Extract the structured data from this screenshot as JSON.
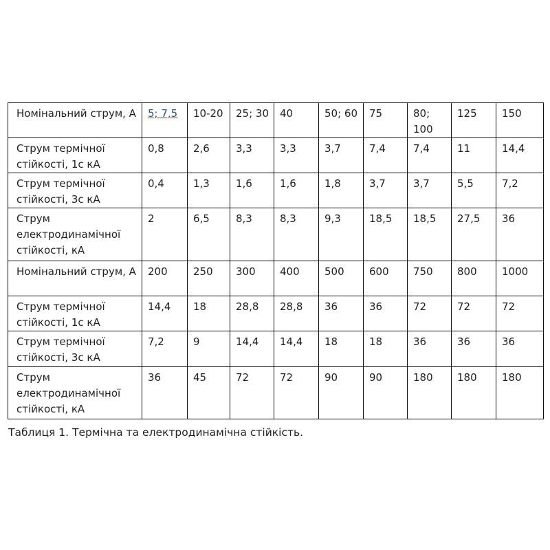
{
  "table": {
    "rows": [
      {
        "label": "Номінальний струм, А",
        "values": [
          "5; 7,5",
          "10-20",
          "25; 30",
          "40",
          "50; 60",
          "75",
          "80; 100",
          "125",
          "150"
        ]
      },
      {
        "label": "Струм термічної стійкості, 1с кА",
        "values": [
          "0,8",
          "2,6",
          "3,3",
          "3,3",
          "3,7",
          "7,4",
          "7,4",
          "11",
          "14,4"
        ]
      },
      {
        "label": "Струм термічної стійкості, 3с кА",
        "values": [
          "0,4",
          "1,3",
          "1,6",
          "1,6",
          "1,8",
          "3,7",
          "3,7",
          "5,5",
          "7,2"
        ]
      },
      {
        "label": "Струм електродинамічної стійкості, кА",
        "values": [
          "2",
          "6,5",
          "8,3",
          "8,3",
          "9,3",
          "18,5",
          "18,5",
          "27,5",
          "36"
        ]
      },
      {
        "label": "Номінальний струм, А",
        "values": [
          "200",
          "250",
          "300",
          "400",
          "500",
          "600",
          "750",
          "800",
          "1000"
        ]
      },
      {
        "label": "Струм термічної стійкості, 1с кА",
        "values": [
          "14,4",
          "18",
          "28,8",
          "28,8",
          "36",
          "36",
          "72",
          "72",
          "72"
        ]
      },
      {
        "label": "Струм термічної стійкості, 3с кА",
        "values": [
          "7,2",
          "9",
          "14,4",
          "14,4",
          "18",
          "18",
          "36",
          "36",
          "36"
        ]
      },
      {
        "label": "Струм електродинамічної стійкості, кА",
        "values": [
          "36",
          "45",
          "72",
          "72",
          "90",
          "90",
          "180",
          "180",
          "180"
        ]
      }
    ]
  },
  "caption": "Таблиця 1. Термічна та електродинамічна стійкість."
}
